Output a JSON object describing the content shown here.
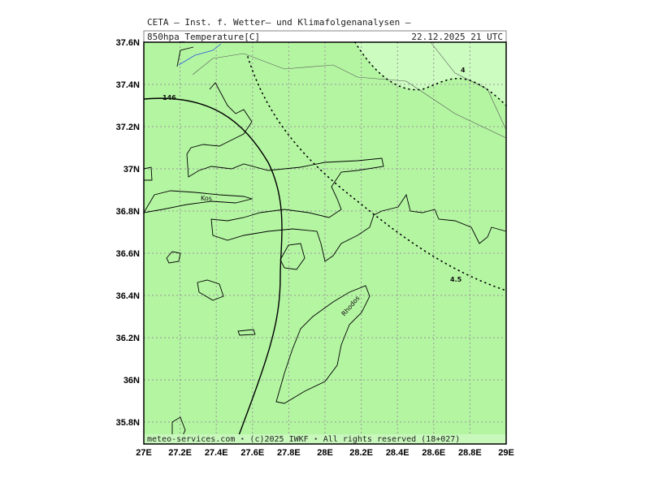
{
  "header": {
    "title": "CETA — Inst. f. Wetter— und Klimafolgenanalysen —",
    "field": "850hpa_Temperature[C]",
    "datetime": "22.12.2025 21 UTC"
  },
  "axes": {
    "xticks": [
      "27E",
      "27.2E",
      "27.4E",
      "27.6E",
      "27.8E",
      "28E",
      "28.2E",
      "28.4E",
      "28.6E",
      "28.8E",
      "29E"
    ],
    "yticks": [
      "37.6N",
      "37.4N",
      "37.2N",
      "37N",
      "36.8N",
      "36.6N",
      "36.4N",
      "36.2N",
      "36N",
      "35.8N"
    ]
  },
  "contours": [
    "146",
    "4",
    "4.5"
  ],
  "places": [
    "Kos",
    "Rhodos"
  ],
  "footer": "meteo-services.com ⋆ (c)2025 IWKF ⋆ All rights reserved (18+027)"
}
